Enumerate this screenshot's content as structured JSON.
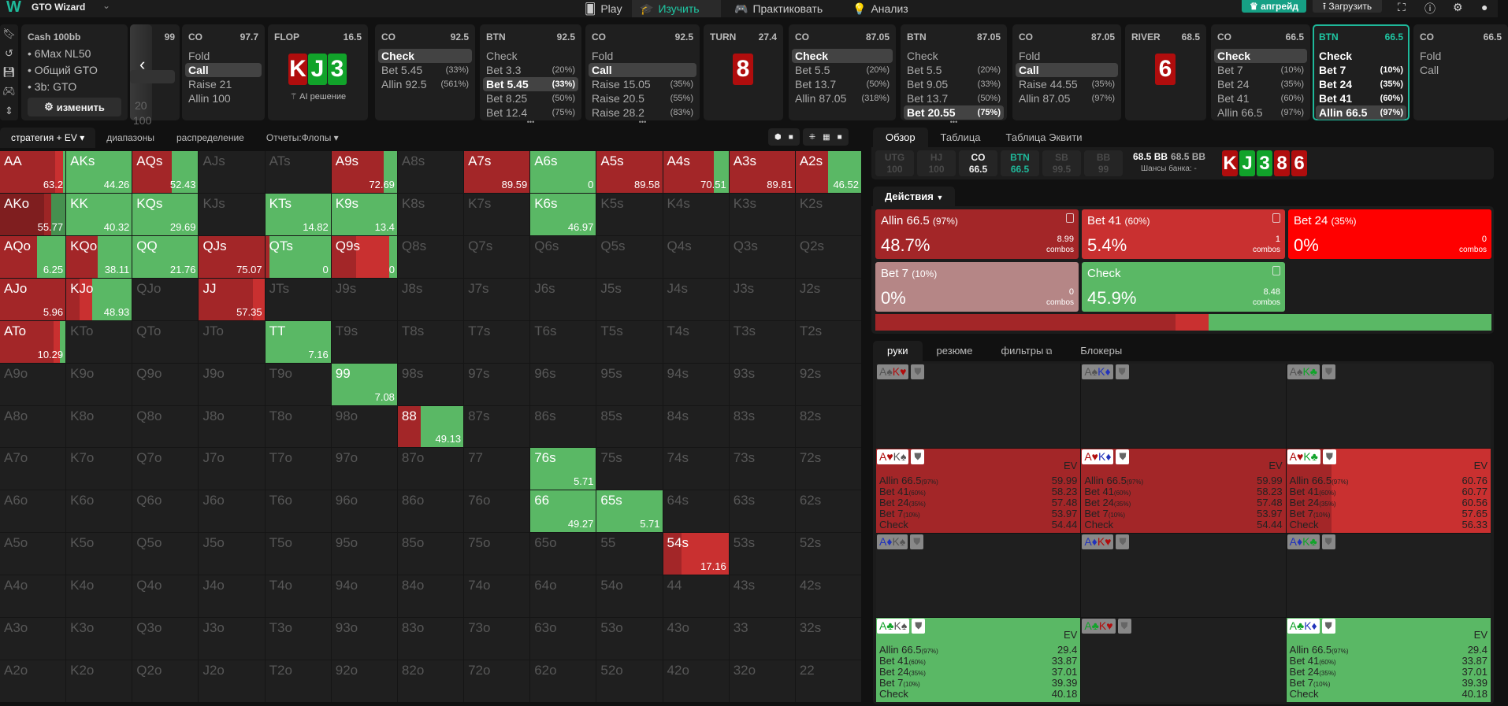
{
  "colors": {
    "accent": "#1fb89a",
    "allin": "#a32628",
    "bet41": "#c93030",
    "bet24": "#ff0000",
    "bet7": "#b58686",
    "check": "#5ab865",
    "hearts": "#b00d0d",
    "clubs": "#11a32a"
  },
  "topbar": {
    "logo": "W",
    "app": "GTO Wizard",
    "tabs": [
      {
        "label": "Play",
        "icon": "cards-icon"
      },
      {
        "label": "Изучить",
        "icon": "graduation-cap-icon",
        "active": true
      },
      {
        "label": "Практиковать",
        "icon": "gamepad-icon"
      },
      {
        "label": "Анализ",
        "icon": "bulb-icon"
      }
    ],
    "upgrade": "апгрейд",
    "upload": "Загрузить"
  },
  "info": {
    "title": "Cash",
    "stack": "100bb",
    "items": [
      "6Max NL50",
      "Общий GTO",
      "3b: GTO"
    ],
    "change": "изменить"
  },
  "scroll_card": {
    "v1": "99",
    "v2": "20",
    "v3": "100"
  },
  "path": [
    {
      "type": "action",
      "pos": "CO",
      "stack": "97.7",
      "items": [
        {
          "l": "Fold"
        },
        {
          "l": "Call",
          "sel": true
        },
        {
          "l": "Raise 21"
        },
        {
          "l": "Allin 100"
        }
      ]
    },
    {
      "type": "board",
      "street": "FLOP",
      "pot": "16.5",
      "cards": [
        {
          "r": "K",
          "s": "h"
        },
        {
          "r": "J",
          "s": "c"
        },
        {
          "r": "3",
          "s": "c"
        }
      ],
      "ai": "AI решение"
    },
    {
      "type": "action",
      "pos": "CO",
      "stack": "92.5",
      "items": [
        {
          "l": "Check",
          "sel": true
        },
        {
          "l": "Bet 5.45",
          "p": "(33%)"
        },
        {
          "l": "Allin 92.5",
          "p": "(561%)"
        }
      ]
    },
    {
      "type": "action",
      "pos": "BTN",
      "stack": "92.5",
      "items": [
        {
          "l": "Check"
        },
        {
          "l": "Bet 3.3",
          "p": "(20%)"
        },
        {
          "l": "Bet 5.45",
          "p": "(33%)",
          "sel": true
        },
        {
          "l": "Bet 8.25",
          "p": "(50%)"
        },
        {
          "l": "Bet 12.4",
          "p": "(75%)"
        }
      ],
      "more": true
    },
    {
      "type": "action",
      "pos": "CO",
      "stack": "92.5",
      "items": [
        {
          "l": "Fold"
        },
        {
          "l": "Call",
          "sel": true
        },
        {
          "l": "Raise 15.05",
          "p": "(35%)"
        },
        {
          "l": "Raise 20.5",
          "p": "(55%)"
        },
        {
          "l": "Raise 28.2",
          "p": "(83%)"
        }
      ],
      "more": true
    },
    {
      "type": "board",
      "street": "TURN",
      "pot": "27.4",
      "cards": [
        {
          "r": "8",
          "s": "h"
        }
      ]
    },
    {
      "type": "action",
      "pos": "CO",
      "stack": "87.05",
      "items": [
        {
          "l": "Check",
          "sel": true
        },
        {
          "l": "Bet 5.5",
          "p": "(20%)"
        },
        {
          "l": "Bet 13.7",
          "p": "(50%)"
        },
        {
          "l": "Allin 87.05",
          "p": "(318%)"
        }
      ]
    },
    {
      "type": "action",
      "pos": "BTN",
      "stack": "87.05",
      "items": [
        {
          "l": "Check"
        },
        {
          "l": "Bet 5.5",
          "p": "(20%)"
        },
        {
          "l": "Bet 9.05",
          "p": "(33%)"
        },
        {
          "l": "Bet 13.7",
          "p": "(50%)"
        },
        {
          "l": "Bet 20.55",
          "p": "(75%)",
          "sel": true
        }
      ],
      "more": true
    },
    {
      "type": "action",
      "pos": "CO",
      "stack": "87.05",
      "items": [
        {
          "l": "Fold"
        },
        {
          "l": "Call",
          "sel": true
        },
        {
          "l": "Raise 44.55",
          "p": "(35%)"
        },
        {
          "l": "Allin 87.05",
          "p": "(97%)"
        }
      ]
    },
    {
      "type": "board",
      "street": "RIVER",
      "pot": "68.5",
      "cards": [
        {
          "r": "6",
          "s": "h"
        }
      ]
    },
    {
      "type": "action",
      "pos": "CO",
      "stack": "66.5",
      "items": [
        {
          "l": "Check",
          "sel": true
        },
        {
          "l": "Bet 7",
          "p": "(10%)"
        },
        {
          "l": "Bet 24",
          "p": "(35%)"
        },
        {
          "l": "Bet 41",
          "p": "(60%)"
        },
        {
          "l": "Allin 66.5",
          "p": "(97%)"
        }
      ]
    },
    {
      "type": "action",
      "pos": "BTN",
      "stack": "66.5",
      "active": true,
      "items": [
        {
          "l": "Check"
        },
        {
          "l": "Bet 7",
          "p": "(10%)"
        },
        {
          "l": "Bet 24",
          "p": "(35%)"
        },
        {
          "l": "Bet 41",
          "p": "(60%)"
        },
        {
          "l": "Allin 66.5",
          "p": "(97%)",
          "sel": true
        }
      ]
    },
    {
      "type": "action",
      "pos": "CO",
      "stack": "66.5",
      "items": [
        {
          "l": "Fold"
        },
        {
          "l": "Call"
        }
      ]
    }
  ],
  "matrix": {
    "tabs": [
      {
        "label": "стратегия + EV",
        "caret": true,
        "active": true
      },
      {
        "label": "диапазоны"
      },
      {
        "label": "распределение"
      },
      {
        "label": "Отчеты:Флопы",
        "caret": true
      }
    ],
    "ranks": [
      "A",
      "K",
      "Q",
      "J",
      "T",
      "9",
      "8",
      "7",
      "6",
      "5",
      "4",
      "3",
      "2"
    ],
    "cells": {
      "AA": {
        "ev": "63.2",
        "mix": [
          [
            "allin",
            0.84
          ],
          [
            "bet41",
            0.12
          ],
          [
            "check",
            0.04
          ]
        ]
      },
      "AKs": {
        "ev": "44.26",
        "mix": [
          [
            "check",
            1
          ]
        ]
      },
      "AQs": {
        "ev": "52.43",
        "mix": [
          [
            "allin",
            0.6
          ],
          [
            "check",
            0.4
          ]
        ]
      },
      "A9s": {
        "ev": "72.69",
        "mix": [
          [
            "allin",
            0.8
          ],
          [
            "check",
            0.2
          ]
        ]
      },
      "A7s": {
        "ev": "89.59",
        "mix": [
          [
            "allin",
            1
          ]
        ]
      },
      "A6s": {
        "ev": "0",
        "mix": [
          [
            "check",
            1
          ]
        ]
      },
      "A5s": {
        "ev": "89.58",
        "mix": [
          [
            "allin",
            1
          ]
        ]
      },
      "A4s": {
        "ev": "70.51",
        "mix": [
          [
            "allin",
            0.78
          ],
          [
            "check",
            0.22
          ]
        ]
      },
      "A3s": {
        "ev": "89.81",
        "mix": [
          [
            "allin",
            1
          ]
        ]
      },
      "A2s": {
        "ev": "46.52",
        "mix": [
          [
            "allin",
            0.5
          ],
          [
            "check",
            0.5
          ]
        ]
      },
      "AKo": {
        "ev": "55.77",
        "selected": true,
        "mix": [
          [
            "allin",
            0.67
          ],
          [
            "bet41",
            0.11
          ],
          [
            "check",
            0.22
          ]
        ]
      },
      "KK": {
        "ev": "40.32",
        "mix": [
          [
            "check",
            1
          ]
        ]
      },
      "KQs": {
        "ev": "29.69",
        "mix": [
          [
            "check",
            1
          ]
        ]
      },
      "KTs": {
        "ev": "14.82",
        "mix": [
          [
            "check",
            1
          ]
        ]
      },
      "K9s": {
        "ev": "13.4",
        "mix": [
          [
            "check",
            1
          ]
        ]
      },
      "K6s": {
        "ev": "46.97",
        "mix": [
          [
            "check",
            1
          ]
        ]
      },
      "AQo": {
        "ev": "6.25",
        "mix": [
          [
            "allin",
            0.56
          ],
          [
            "check",
            0.44
          ]
        ]
      },
      "KQo": {
        "ev": "38.11",
        "mix": [
          [
            "allin",
            0.48
          ],
          [
            "check",
            0.52
          ]
        ]
      },
      "QQ": {
        "ev": "21.76",
        "mix": [
          [
            "check",
            1
          ]
        ]
      },
      "QJs": {
        "ev": "75.07",
        "mix": [
          [
            "allin",
            1
          ]
        ]
      },
      "QTs": {
        "ev": "0",
        "mix": [
          [
            "allin",
            0.06
          ],
          [
            "check",
            0.94
          ]
        ]
      },
      "Q9s": {
        "ev": "0",
        "mix": [
          [
            "allin",
            0.38
          ],
          [
            "bet41",
            0.5
          ],
          [
            "check",
            0.12
          ]
        ]
      },
      "AJo": {
        "ev": "5.96",
        "mix": [
          [
            "allin",
            1
          ]
        ]
      },
      "KJo": {
        "ev": "48.93",
        "mix": [
          [
            "allin",
            0.2
          ],
          [
            "bet41",
            0.2
          ],
          [
            "check",
            0.6
          ]
        ]
      },
      "JJ": {
        "ev": "57.35",
        "mix": [
          [
            "allin",
            0.82
          ],
          [
            "bet41",
            0.18
          ]
        ]
      },
      "ATo": {
        "ev": "10.29",
        "mix": [
          [
            "allin",
            0.82
          ],
          [
            "bet41",
            0.1
          ],
          [
            "check",
            0.08
          ]
        ]
      },
      "TT": {
        "ev": "7.16",
        "mix": [
          [
            "check",
            1
          ]
        ]
      },
      "99": {
        "ev": "7.08",
        "mix": [
          [
            "check",
            1
          ]
        ]
      },
      "88": {
        "ev": "49.13",
        "mix": [
          [
            "allin",
            0.35
          ],
          [
            "check",
            0.65
          ]
        ]
      },
      "76s": {
        "ev": "5.71",
        "mix": [
          [
            "check",
            1
          ]
        ]
      },
      "66": {
        "ev": "49.27",
        "mix": [
          [
            "check",
            1
          ]
        ]
      },
      "65s": {
        "ev": "5.71",
        "mix": [
          [
            "check",
            1
          ]
        ]
      },
      "54s": {
        "ev": "17.16",
        "mix": [
          [
            "allin",
            0.28
          ],
          [
            "bet41",
            0.72
          ]
        ]
      }
    }
  },
  "right": {
    "tabs": [
      {
        "label": "Обзор",
        "active": true
      },
      {
        "label": "Таблица"
      },
      {
        "label": "Таблица Эквити"
      }
    ],
    "seats": [
      {
        "pos": "UTG",
        "stack": "100"
      },
      {
        "pos": "HJ",
        "stack": "100"
      },
      {
        "pos": "CO",
        "stack": "66.5",
        "hi": true
      },
      {
        "pos": "BTN",
        "stack": "66.5",
        "teal": true
      },
      {
        "pos": "SB",
        "stack": "99.5"
      },
      {
        "pos": "BB",
        "stack": "99"
      }
    ],
    "pot": "68.5 BB",
    "pot2": "68.5 BB",
    "odds_label": "Шансы банка:",
    "odds": "-",
    "board": [
      {
        "r": "K",
        "s": "h"
      },
      {
        "r": "J",
        "s": "c"
      },
      {
        "r": "3",
        "s": "c"
      },
      {
        "r": "8",
        "s": "h"
      },
      {
        "r": "6",
        "s": "h"
      }
    ],
    "actions_label": "Действия",
    "actions": [
      {
        "name": "Allin 66.5",
        "pct": "(97%)",
        "freq": "48.7%",
        "combos": "8.99",
        "unit": "combos",
        "color": "allin",
        "icon": true
      },
      {
        "name": "Bet 41",
        "pct": "(60%)",
        "freq": "5.4%",
        "combos": "1",
        "unit": "combos",
        "color": "bet41",
        "icon": true
      },
      {
        "name": "Bet 24",
        "pct": "(35%)",
        "freq": "0%",
        "combos": "0",
        "unit": "combos",
        "color": "bet24"
      },
      {
        "name": "Bet 7",
        "pct": "(10%)",
        "freq": "0%",
        "combos": "0",
        "unit": "combos",
        "color": "bet7"
      },
      {
        "name": "Check",
        "pct": "",
        "freq": "45.9%",
        "combos": "8.48",
        "unit": "combos",
        "color": "check",
        "icon": true
      }
    ],
    "bar": [
      [
        "allin",
        48.7
      ],
      [
        "bet41",
        5.4
      ],
      [
        "check",
        45.9
      ]
    ],
    "hand_tabs": [
      {
        "label": "руки",
        "active": true
      },
      {
        "label": "резюме"
      },
      {
        "label": "фильтры",
        "icon": true
      },
      {
        "label": "Блокеры"
      }
    ],
    "ev_label": "EV",
    "hands": [
      {
        "c": [
          [
            "A",
            "s"
          ],
          [
            "K",
            "h"
          ]
        ]
      },
      {
        "c": [
          [
            "A",
            "s"
          ],
          [
            "K",
            "d"
          ]
        ]
      },
      {
        "c": [
          [
            "A",
            "s"
          ],
          [
            "K",
            "c"
          ]
        ]
      },
      {
        "c": [
          [
            "A",
            "h"
          ],
          [
            "K",
            "s"
          ]
        ],
        "mix": [
          [
            "allin",
            1
          ]
        ],
        "ev": [
          "59.99",
          "58.23",
          "57.48",
          "53.97",
          "54.44"
        ]
      },
      {
        "c": [
          [
            "A",
            "h"
          ],
          [
            "K",
            "d"
          ]
        ],
        "mix": [
          [
            "allin",
            1
          ]
        ],
        "ev": [
          "59.99",
          "58.23",
          "57.48",
          "53.97",
          "54.44"
        ]
      },
      {
        "c": [
          [
            "A",
            "h"
          ],
          [
            "K",
            "c"
          ]
        ],
        "mix": [
          [
            "allin",
            0.22
          ],
          [
            "bet41",
            0.78
          ]
        ],
        "ev": [
          "60.76",
          "60.77",
          "60.56",
          "57.65",
          "56.33"
        ]
      },
      {
        "c": [
          [
            "A",
            "d"
          ],
          [
            "K",
            "s"
          ]
        ]
      },
      {
        "c": [
          [
            "A",
            "d"
          ],
          [
            "K",
            "h"
          ]
        ]
      },
      {
        "c": [
          [
            "A",
            "d"
          ],
          [
            "K",
            "c"
          ]
        ]
      },
      {
        "c": [
          [
            "A",
            "c"
          ],
          [
            "K",
            "s"
          ]
        ],
        "mix": [
          [
            "check",
            1
          ]
        ],
        "ev": [
          "29.4",
          "33.87",
          "37.01",
          "39.39",
          "40.18"
        ]
      },
      {
        "c": [
          [
            "A",
            "c"
          ],
          [
            "K",
            "h"
          ]
        ]
      },
      {
        "c": [
          [
            "A",
            "c"
          ],
          [
            "K",
            "d"
          ]
        ],
        "mix": [
          [
            "check",
            1
          ]
        ],
        "ev": [
          "29.4",
          "33.87",
          "37.01",
          "39.39",
          "40.18"
        ]
      }
    ],
    "hand_rows": [
      {
        "l": "Allin 66.5",
        "p": "(97%)"
      },
      {
        "l": "Bet 41",
        "p": "(60%)"
      },
      {
        "l": "Bet 24",
        "p": "(35%)"
      },
      {
        "l": "Bet 7",
        "p": "(10%)"
      },
      {
        "l": "Check",
        "p": ""
      }
    ]
  }
}
